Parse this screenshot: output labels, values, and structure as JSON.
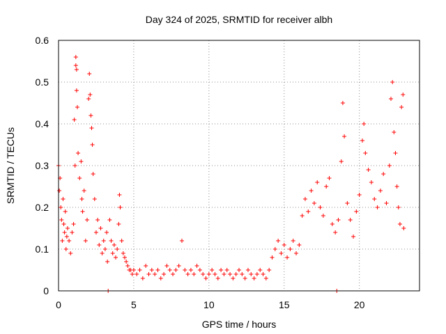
{
  "chart_data": {
    "type": "scatter",
    "title": "Day 324 of 2025, SRMTID for receiver albh",
    "xlabel": "GPS time / hours",
    "ylabel": "SRMTID / TECUs",
    "xlim": [
      0,
      24
    ],
    "ylim": [
      0,
      0.6
    ],
    "xticks": [
      0,
      5,
      10,
      15,
      20
    ],
    "yticks": [
      0,
      0.1,
      0.2,
      0.3,
      0.4,
      0.5,
      0.6
    ],
    "xtick_labels": [
      "0",
      "5",
      "10",
      "15",
      "20"
    ],
    "ytick_labels": [
      "0",
      "0.1",
      "0.2",
      "0.3",
      "0.4",
      "0.5",
      "0.6"
    ],
    "grid": true,
    "marker": "+",
    "series": [
      {
        "name": "SRMTID",
        "color": "#ff0000",
        "points": [
          [
            0.0,
            0.3
          ],
          [
            0.05,
            0.24
          ],
          [
            0.1,
            0.27
          ],
          [
            0.15,
            0.2
          ],
          [
            0.2,
            0.17
          ],
          [
            0.25,
            0.12
          ],
          [
            0.3,
            0.22
          ],
          [
            0.35,
            0.16
          ],
          [
            0.4,
            0.14
          ],
          [
            0.45,
            0.19
          ],
          [
            0.5,
            0.1
          ],
          [
            0.55,
            0.13
          ],
          [
            0.6,
            0.15
          ],
          [
            0.7,
            0.12
          ],
          [
            0.8,
            0.09
          ],
          [
            0.9,
            0.14
          ],
          [
            1.0,
            0.16
          ],
          [
            1.05,
            0.41
          ],
          [
            1.1,
            0.3
          ],
          [
            1.15,
            0.56
          ],
          [
            1.15,
            0.54
          ],
          [
            1.2,
            0.53
          ],
          [
            1.2,
            0.48
          ],
          [
            1.25,
            0.44
          ],
          [
            1.3,
            0.33
          ],
          [
            1.4,
            0.27
          ],
          [
            1.5,
            0.31
          ],
          [
            1.55,
            0.22
          ],
          [
            1.6,
            0.19
          ],
          [
            1.7,
            0.24
          ],
          [
            1.8,
            0.12
          ],
          [
            1.9,
            0.17
          ],
          [
            2.0,
            0.46
          ],
          [
            2.05,
            0.52
          ],
          [
            2.1,
            0.47
          ],
          [
            2.15,
            0.42
          ],
          [
            2.2,
            0.39
          ],
          [
            2.25,
            0.35
          ],
          [
            2.3,
            0.28
          ],
          [
            2.4,
            0.22
          ],
          [
            2.5,
            0.14
          ],
          [
            2.6,
            0.17
          ],
          [
            2.7,
            0.11
          ],
          [
            2.8,
            0.15
          ],
          [
            2.9,
            0.09
          ],
          [
            3.0,
            0.12
          ],
          [
            3.1,
            0.1
          ],
          [
            3.2,
            0.14
          ],
          [
            3.25,
            0.07
          ],
          [
            3.3,
            0.0
          ],
          [
            3.4,
            0.17
          ],
          [
            3.5,
            0.12
          ],
          [
            3.6,
            0.09
          ],
          [
            3.7,
            0.11
          ],
          [
            3.8,
            0.08
          ],
          [
            3.9,
            0.1
          ],
          [
            4.0,
            0.16
          ],
          [
            4.05,
            0.23
          ],
          [
            4.1,
            0.2
          ],
          [
            4.2,
            0.12
          ],
          [
            4.3,
            0.09
          ],
          [
            4.4,
            0.08
          ],
          [
            4.5,
            0.07
          ],
          [
            4.6,
            0.06
          ],
          [
            4.7,
            0.05
          ],
          [
            4.8,
            0.05
          ],
          [
            4.9,
            0.04
          ],
          [
            5.0,
            0.05
          ],
          [
            5.2,
            0.04
          ],
          [
            5.4,
            0.05
          ],
          [
            5.6,
            0.03
          ],
          [
            5.8,
            0.06
          ],
          [
            6.0,
            0.04
          ],
          [
            6.2,
            0.05
          ],
          [
            6.4,
            0.04
          ],
          [
            6.6,
            0.05
          ],
          [
            6.8,
            0.03
          ],
          [
            7.0,
            0.04
          ],
          [
            7.2,
            0.06
          ],
          [
            7.4,
            0.05
          ],
          [
            7.6,
            0.04
          ],
          [
            7.8,
            0.05
          ],
          [
            8.0,
            0.06
          ],
          [
            8.2,
            0.12
          ],
          [
            8.4,
            0.05
          ],
          [
            8.6,
            0.04
          ],
          [
            8.8,
            0.05
          ],
          [
            9.0,
            0.04
          ],
          [
            9.2,
            0.06
          ],
          [
            9.4,
            0.05
          ],
          [
            9.6,
            0.04
          ],
          [
            9.8,
            0.03
          ],
          [
            10.0,
            0.04
          ],
          [
            10.2,
            0.05
          ],
          [
            10.4,
            0.04
          ],
          [
            10.6,
            0.03
          ],
          [
            10.8,
            0.05
          ],
          [
            11.0,
            0.04
          ],
          [
            11.2,
            0.05
          ],
          [
            11.4,
            0.04
          ],
          [
            11.6,
            0.03
          ],
          [
            11.8,
            0.04
          ],
          [
            12.0,
            0.05
          ],
          [
            12.2,
            0.04
          ],
          [
            12.4,
            0.03
          ],
          [
            12.6,
            0.05
          ],
          [
            12.8,
            0.04
          ],
          [
            13.0,
            0.03
          ],
          [
            13.2,
            0.04
          ],
          [
            13.4,
            0.05
          ],
          [
            13.6,
            0.04
          ],
          [
            13.8,
            0.03
          ],
          [
            14.0,
            0.05
          ],
          [
            14.2,
            0.08
          ],
          [
            14.4,
            0.1
          ],
          [
            14.6,
            0.12
          ],
          [
            14.8,
            0.09
          ],
          [
            15.0,
            0.11
          ],
          [
            15.2,
            0.08
          ],
          [
            15.4,
            0.1
          ],
          [
            15.6,
            0.12
          ],
          [
            15.8,
            0.09
          ],
          [
            16.0,
            0.11
          ],
          [
            16.2,
            0.18
          ],
          [
            16.4,
            0.22
          ],
          [
            16.6,
            0.19
          ],
          [
            16.8,
            0.24
          ],
          [
            17.0,
            0.21
          ],
          [
            17.2,
            0.26
          ],
          [
            17.4,
            0.2
          ],
          [
            17.6,
            0.18
          ],
          [
            17.8,
            0.25
          ],
          [
            18.0,
            0.27
          ],
          [
            18.2,
            0.16
          ],
          [
            18.4,
            0.14
          ],
          [
            18.5,
            0.0
          ],
          [
            18.6,
            0.17
          ],
          [
            18.8,
            0.31
          ],
          [
            18.9,
            0.45
          ],
          [
            19.0,
            0.37
          ],
          [
            19.2,
            0.21
          ],
          [
            19.4,
            0.17
          ],
          [
            19.6,
            0.13
          ],
          [
            19.8,
            0.19
          ],
          [
            20.0,
            0.23
          ],
          [
            20.2,
            0.36
          ],
          [
            20.3,
            0.4
          ],
          [
            20.4,
            0.33
          ],
          [
            20.6,
            0.29
          ],
          [
            20.8,
            0.26
          ],
          [
            21.0,
            0.22
          ],
          [
            21.2,
            0.2
          ],
          [
            21.4,
            0.24
          ],
          [
            21.6,
            0.28
          ],
          [
            21.8,
            0.21
          ],
          [
            22.0,
            0.3
          ],
          [
            22.1,
            0.46
          ],
          [
            22.2,
            0.5
          ],
          [
            22.3,
            0.38
          ],
          [
            22.4,
            0.33
          ],
          [
            22.5,
            0.25
          ],
          [
            22.6,
            0.2
          ],
          [
            22.7,
            0.16
          ],
          [
            22.8,
            0.44
          ],
          [
            22.9,
            0.47
          ],
          [
            22.95,
            0.15
          ]
        ]
      }
    ]
  }
}
